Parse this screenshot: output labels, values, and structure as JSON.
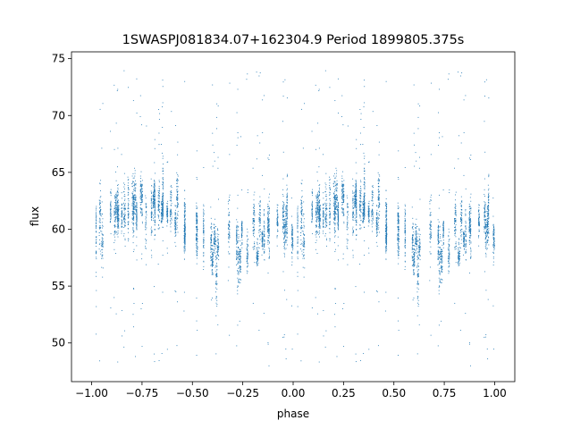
{
  "chart_data": {
    "type": "scatter",
    "title": "1SWASPJ081834.07+162304.9 Period 1899805.375s",
    "xlabel": "phase",
    "ylabel": "flux",
    "xlim": [
      -1.1,
      1.1
    ],
    "ylim": [
      46.6,
      75.6
    ],
    "xticks": [
      -1.0,
      -0.75,
      -0.5,
      -0.25,
      0.0,
      0.25,
      0.5,
      0.75,
      1.0
    ],
    "xtick_labels": [
      "−1.00",
      "−0.75",
      "−0.50",
      "−0.25",
      "0.00",
      "0.25",
      "0.50",
      "0.75",
      "1.00"
    ],
    "yticks": [
      50,
      55,
      60,
      65,
      70,
      75
    ],
    "ytick_labels": [
      "50",
      "55",
      "60",
      "65",
      "70",
      "75"
    ],
    "grid": false,
    "legend": "none",
    "point_color": "#1f77b4",
    "trend": {
      "phase": [
        0.0,
        0.05,
        0.1,
        0.15,
        0.2,
        0.25,
        0.3,
        0.35,
        0.4,
        0.45,
        0.5,
        0.55,
        0.6,
        0.65,
        0.7,
        0.75,
        0.8,
        0.85,
        0.9,
        0.95,
        1.0
      ],
      "flux": [
        60.3,
        61.0,
        61.8,
        62.3,
        62.5,
        62.4,
        62.2,
        62.0,
        61.3,
        60.6,
        59.6,
        58.7,
        58.0,
        57.8,
        58.3,
        59.0,
        59.6,
        60.0,
        60.3,
        60.6,
        60.8
      ]
    },
    "scatter_sigma": 1.5,
    "outlier_fraction": 0.07,
    "outlier_range": [
      48,
      74
    ],
    "points_per_cycle": 3500
  }
}
